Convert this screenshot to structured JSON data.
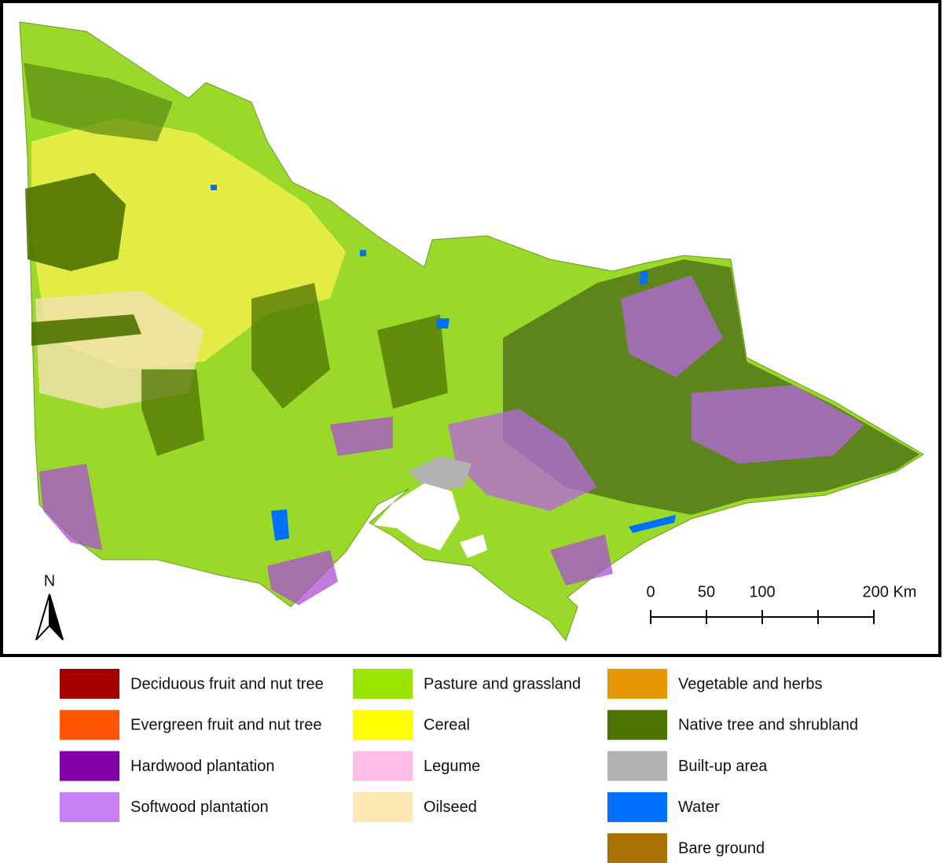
{
  "north_arrow": {
    "label": "N"
  },
  "scale_bar": {
    "labels": [
      "0",
      "50",
      "100",
      "200 Km"
    ]
  },
  "legend": {
    "items": [
      {
        "label": "Deciduous fruit and nut tree",
        "color": "#a50000"
      },
      {
        "label": "Evergreen fruit and nut tree",
        "color": "#ff5500"
      },
      {
        "label": "Hardwood plantation",
        "color": "#8400a8"
      },
      {
        "label": "Softwood plantation",
        "color": "#c67ef0"
      },
      {
        "label": "Pasture and grassland",
        "color": "#98e600"
      },
      {
        "label": "Cereal",
        "color": "#ffff00"
      },
      {
        "label": "Legume",
        "color": "#ffbee8"
      },
      {
        "label": "Oilseed",
        "color": "#fde8b4"
      },
      {
        "label": "Vegetable and herbs",
        "color": "#e69800"
      },
      {
        "label": "Native tree and shrubland",
        "color": "#4c7300"
      },
      {
        "label": "Built-up area",
        "color": "#b2b2b2"
      },
      {
        "label": "Water",
        "color": "#0070ff"
      },
      {
        "label": "Bare ground",
        "color": "#a87000"
      }
    ]
  }
}
